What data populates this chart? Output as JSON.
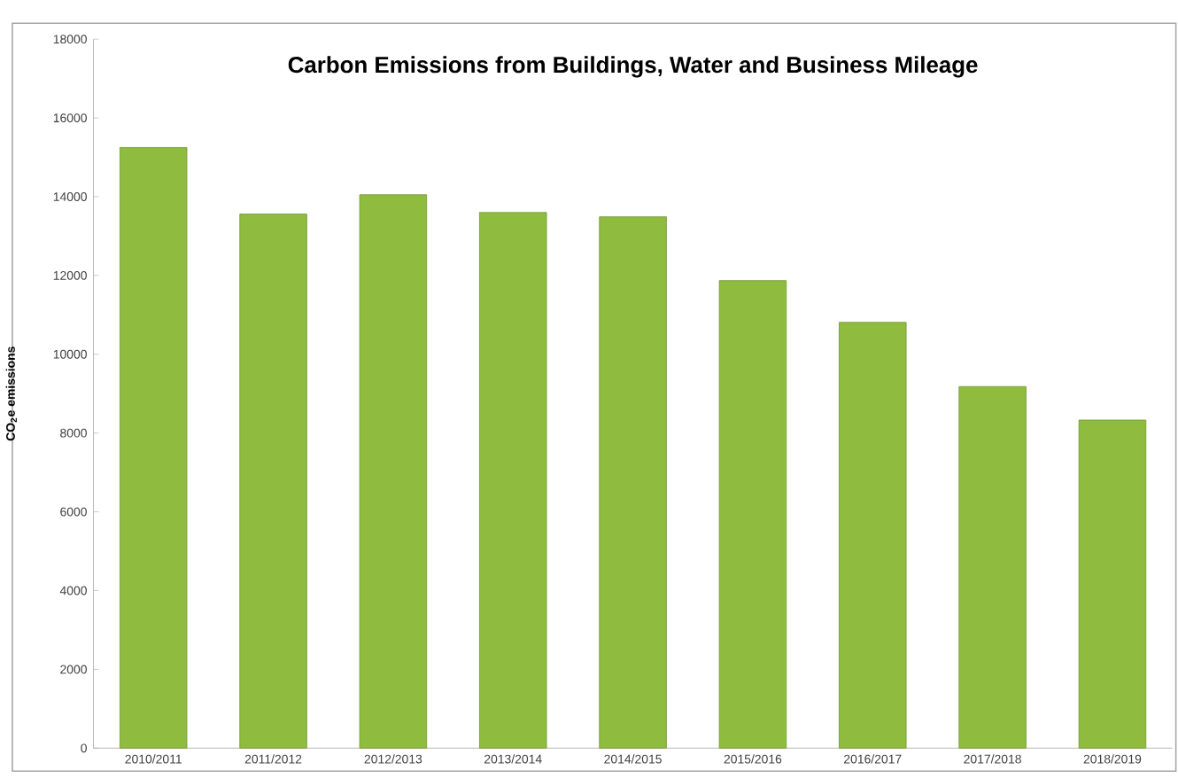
{
  "chart_data": {
    "type": "bar",
    "title": "Carbon Emissions from Buildings, Water and Business Mileage",
    "ylabel": "CO$_{2}$e emissions",
    "categories": [
      "2010/2011",
      "2011/2012",
      "2012/2013",
      "2013/2014",
      "2014/2015",
      "2015/2016",
      "2016/2017",
      "2017/2018",
      "2018/2019"
    ],
    "values": [
      15250,
      13560,
      14050,
      13600,
      13490,
      11870,
      10810,
      9180,
      8330
    ],
    "color": "#8fbc3f",
    "ylim": [
      0,
      18000
    ],
    "yticks": [
      0,
      2000,
      4000,
      6000,
      8000,
      10000,
      12000,
      14000,
      16000,
      18000
    ],
    "grid": false
  }
}
